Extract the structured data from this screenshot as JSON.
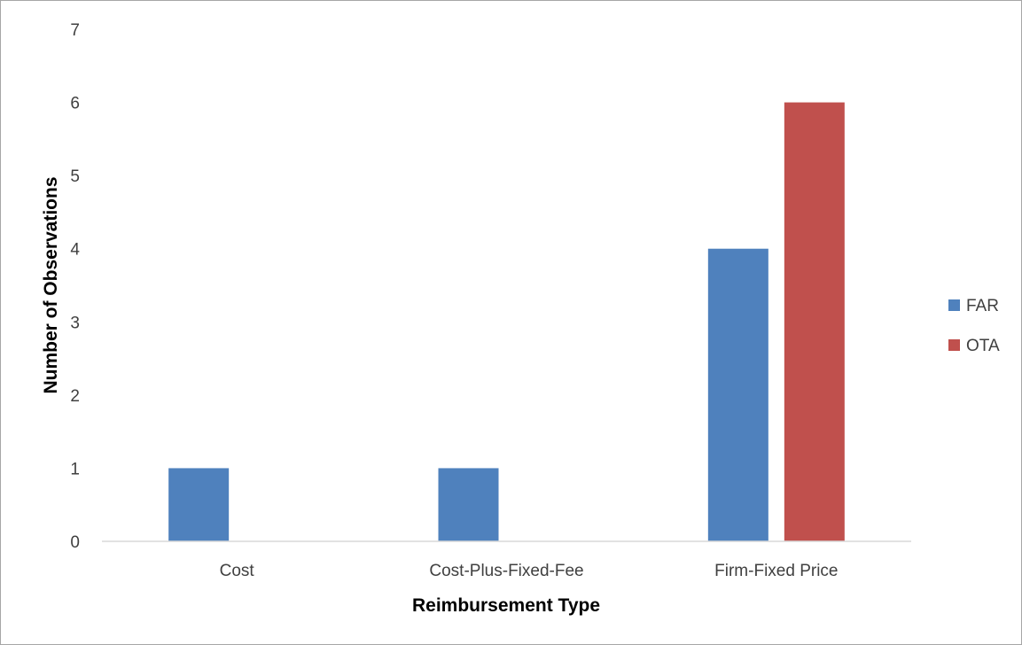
{
  "chart_data": {
    "type": "bar",
    "title": "",
    "xlabel": "Reimbursement Type",
    "ylabel": "Number of Observations",
    "categories": [
      "Cost",
      "Cost-Plus-Fixed-Fee",
      "Firm-Fixed Price"
    ],
    "series": [
      {
        "name": "FAR",
        "color": "#4f81bd",
        "values": [
          1,
          1,
          4
        ]
      },
      {
        "name": "OTA",
        "color": "#c0504d",
        "values": [
          0,
          0,
          6
        ]
      }
    ],
    "ylim": [
      0,
      7
    ],
    "yticks": [
      0,
      1,
      2,
      3,
      4,
      5,
      6,
      7
    ],
    "grid": false,
    "legend": "right"
  }
}
